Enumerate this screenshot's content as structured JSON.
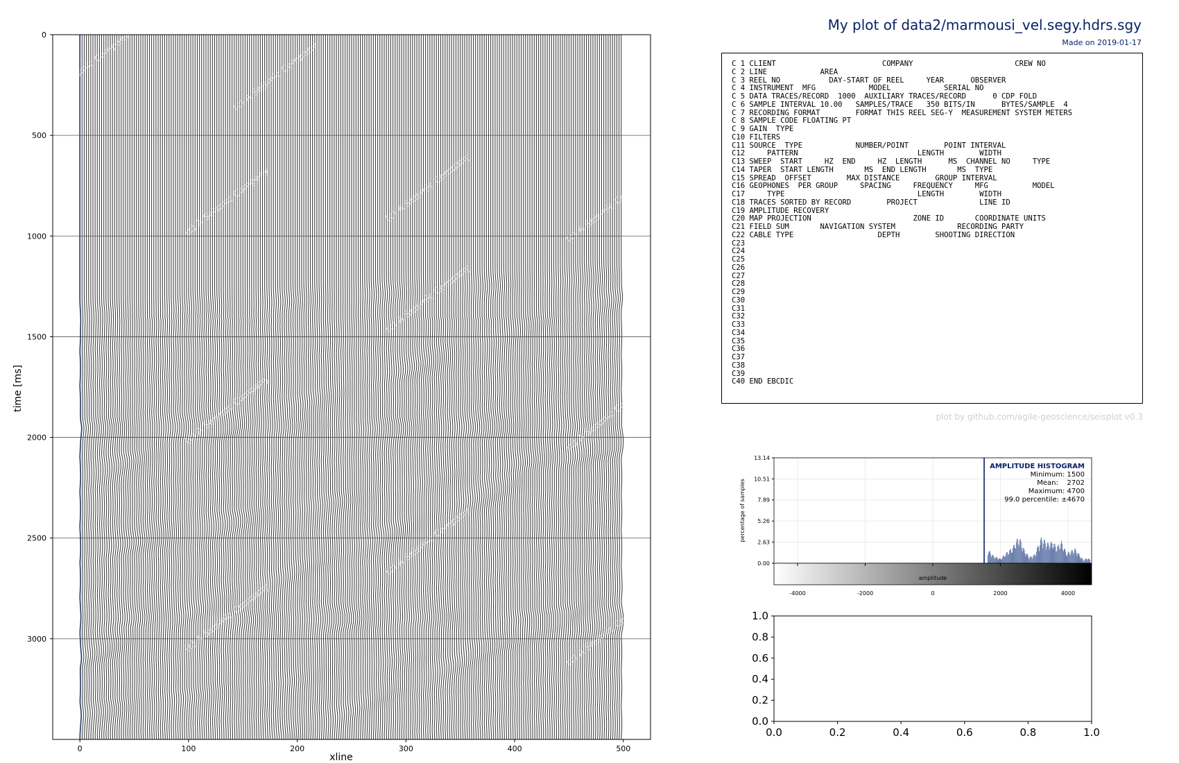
{
  "header": {
    "title": "My plot of data2/marmousi_vel.segy.hdrs.sgy",
    "subtitle": "Made on 2019-01-17"
  },
  "ebcdic": {
    "lines": [
      "C 1 CLIENT                        COMPANY                       CREW NO",
      "C 2 LINE            AREA",
      "C 3 REEL NO           DAY-START OF REEL     YEAR      OBSERVER",
      "C 4 INSTRUMENT  MFG            MODEL            SERIAL NO",
      "C 5 DATA TRACES/RECORD  1000  AUXILIARY TRACES/RECORD      0 CDP FOLD",
      "C 6 SAMPLE INTERVAL 10.00   SAMPLES/TRACE   350 BITS/IN      BYTES/SAMPLE  4",
      "C 7 RECORDING FORMAT        FORMAT THIS REEL SEG-Y  MEASUREMENT SYSTEM METERS",
      "C 8 SAMPLE CODE FLOATING PT",
      "C 9 GAIN  TYPE",
      "C10 FILTERS",
      "C11 SOURCE  TYPE            NUMBER/POINT        POINT INTERVAL",
      "C12     PATTERN                           LENGTH        WIDTH",
      "C13 SWEEP  START     HZ  END     HZ  LENGTH      MS  CHANNEL NO     TYPE",
      "C14 TAPER  START LENGTH       MS  END LENGTH       MS  TYPE",
      "C15 SPREAD  OFFSET        MAX DISTANCE        GROUP INTERVAL",
      "C16 GEOPHONES  PER GROUP     SPACING     FREQUENCY     MFG          MODEL",
      "C17     TYPE                              LENGTH        WIDTH",
      "C18 TRACES SORTED BY RECORD        PROJECT              LINE ID",
      "C19 AMPLITUDE RECOVERY",
      "C20 MAP PROJECTION                       ZONE ID       COORDINATE UNITS",
      "C21 FIELD SUM       NAVIGATION SYSTEM              RECORDING PARTY",
      "C22 CABLE TYPE                   DEPTH        SHOOTING DIRECTION",
      "C23",
      "C24",
      "C25",
      "C26",
      "C27",
      "C28",
      "C29",
      "C30",
      "C31",
      "C32",
      "C33",
      "C34",
      "C35",
      "C36",
      "C37",
      "C38",
      "C39",
      "C40 END EBCDIC"
    ]
  },
  "credit": "plot by github.com/agile-geoscience/seisplot v0.3",
  "watermark": "(c) A Seismic Company",
  "colors": {
    "title": "#0a2264",
    "trace": "#3a3a3a",
    "histogram": "#6a7fae",
    "mean_line": "#34497f",
    "credit": "#d0d0d0"
  },
  "chart_data": [
    {
      "type": "wiggle",
      "xlabel": "xline",
      "ylabel": "time [ms]",
      "xlim": [
        -25,
        525
      ],
      "ylim": [
        3500,
        0
      ],
      "xticks": [
        0,
        100,
        200,
        300,
        400,
        500
      ],
      "yticks": [
        0,
        500,
        1000,
        1500,
        2000,
        2500,
        3000
      ],
      "xtick_labels": [
        "0",
        "100",
        "200",
        "300",
        "400",
        "500"
      ],
      "ytick_labels": [
        "0",
        "500",
        "1000",
        "1500",
        "2000",
        "2500",
        "3000"
      ],
      "grid": "horizontal",
      "trace_count": 500,
      "trace_spacing": 2,
      "amplitude_min": 1500,
      "amplitude_max": 4700
    },
    {
      "type": "histogram",
      "title": "AMPLITUDE HISTOGRAM",
      "ylabel": "percentage of samples",
      "xlabel": "amplitude",
      "xlim": [
        -4700,
        4700
      ],
      "ylim": [
        0,
        13.14
      ],
      "xticks": [
        -4000,
        -2000,
        0,
        2000,
        4000
      ],
      "xtick_labels": [
        "-4000",
        "-2000",
        "0",
        "2000",
        "4000"
      ],
      "yticks": [
        0,
        2.63,
        5.26,
        7.89,
        10.51,
        13.14
      ],
      "ytick_labels": [
        "0.00",
        "2.63",
        "5.26",
        "7.89",
        "10.51",
        "13.14"
      ],
      "stats_lines": [
        "Minimum: 1500",
        "Mean:    2702",
        "Maximum: 4700",
        "99.0 percentile: ±4670"
      ],
      "mean": 2702,
      "range": [
        1500,
        4700
      ],
      "peaks": [
        {
          "x": 1520,
          "y": 13.14
        },
        {
          "x": 1620,
          "y": 1.8
        },
        {
          "x": 1700,
          "y": 1.4
        },
        {
          "x": 1800,
          "y": 0.9
        },
        {
          "x": 2000,
          "y": 0.6
        },
        {
          "x": 2200,
          "y": 1.5
        },
        {
          "x": 2350,
          "y": 2.0
        },
        {
          "x": 2450,
          "y": 2.9
        },
        {
          "x": 2550,
          "y": 3.4
        },
        {
          "x": 2700,
          "y": 1.7
        },
        {
          "x": 2850,
          "y": 0.8
        },
        {
          "x": 3000,
          "y": 1.1
        },
        {
          "x": 3200,
          "y": 3.3
        },
        {
          "x": 3400,
          "y": 2.6
        },
        {
          "x": 3550,
          "y": 2.8
        },
        {
          "x": 3650,
          "y": 2.1
        },
        {
          "x": 3800,
          "y": 2.8
        },
        {
          "x": 3950,
          "y": 1.3
        },
        {
          "x": 4200,
          "y": 1.9
        },
        {
          "x": 4450,
          "y": 0.4
        },
        {
          "x": 4550,
          "y": 0.7
        },
        {
          "x": 4650,
          "y": 0.5
        }
      ]
    },
    {
      "type": "empty",
      "xlim": [
        0,
        1
      ],
      "ylim": [
        0,
        1
      ],
      "xticks": [
        0,
        0.2,
        0.4,
        0.6,
        0.8,
        1.0
      ],
      "yticks": [
        0,
        0.2,
        0.4,
        0.6,
        0.8,
        1.0
      ],
      "xtick_labels": [
        "0.0",
        "0.2",
        "0.4",
        "0.6",
        "0.8",
        "1.0"
      ],
      "ytick_labels": [
        "0.0",
        "0.2",
        "0.4",
        "0.6",
        "0.8",
        "1.0"
      ]
    }
  ]
}
